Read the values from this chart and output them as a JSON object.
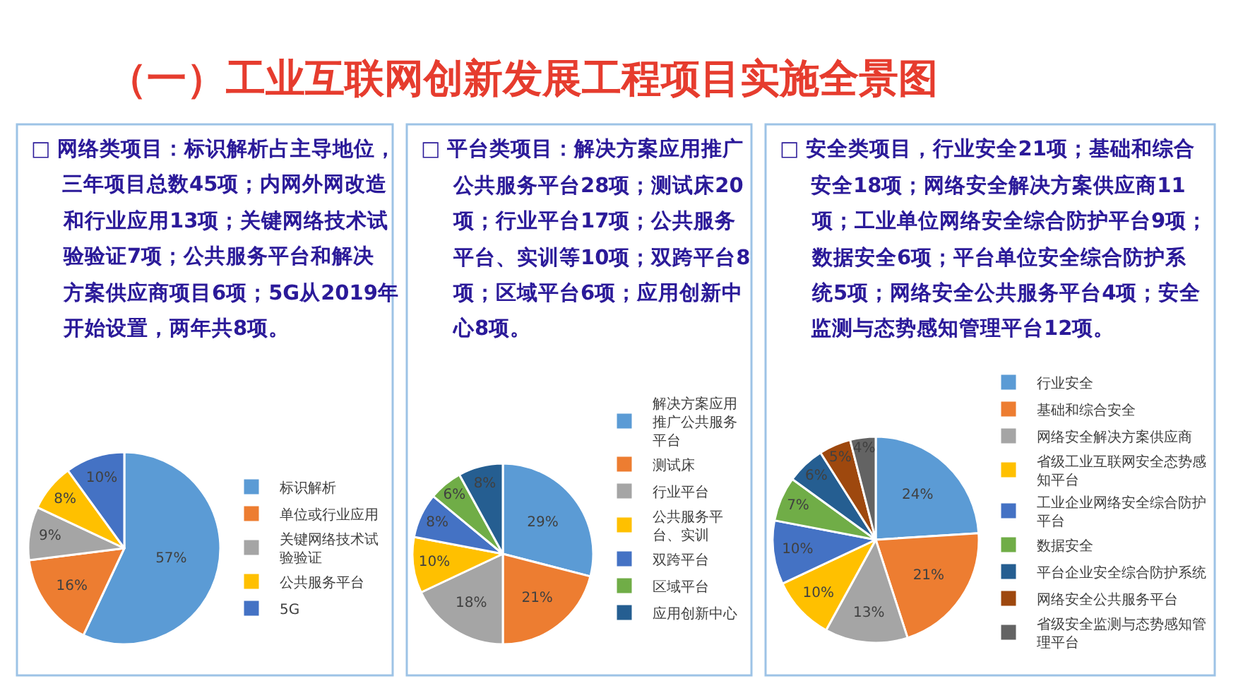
{
  "chart_data": [
    {
      "type": "pie",
      "title": "（一）工业互联网创新发展工程项目实施全景图",
      "subtitle": "□ 网络类项目：标识解析占主导地位，三年项目总数45项；内网外网改造和行业应用13项；关键网络技术试验验证7项；公共服务平台和解决方案供应商项目6项；5G从2019年开始设置，两年共8项。",
      "categories": [
        "标识解析",
        "单位或行业应用",
        "关键网络技术试验验证",
        "公共服务平台",
        "5G"
      ],
      "values": [
        57,
        16,
        9,
        8,
        10
      ],
      "colors": [
        "#5b9bd5",
        "#ed7d31",
        "#a5a5a5",
        "#ffc000",
        "#4472c4"
      ],
      "value_labels": [
        "57%",
        "16%",
        "9%",
        "8%",
        "10%"
      ],
      "legend": "right"
    },
    {
      "type": "pie",
      "subtitle": "□ 平台类项目：解决方案应用推广公共服务平台28项；测试床20项；行业平台17项；公共服务平台、实训等10项；双跨平台8项；区域平台6项；应用创新中心8项。",
      "categories": [
        "解决方案应用推广公共服务平台",
        "测试床",
        "行业平台",
        "公共服务平台、实训",
        "双跨平台",
        "区域平台",
        "应用创新中心"
      ],
      "values": [
        29,
        21,
        18,
        10,
        8,
        6,
        8
      ],
      "colors": [
        "#5b9bd5",
        "#ed7d31",
        "#a5a5a5",
        "#ffc000",
        "#4472c4",
        "#70ad47",
        "#255e91"
      ],
      "value_labels": [
        "29%",
        "21%",
        "18%",
        "10%",
        "8%",
        "6%",
        "8%"
      ],
      "legend": "right"
    },
    {
      "type": "pie",
      "subtitle": "□ 安全类项目，行业安全21项；基础和综合安全18项；网络安全解决方案供应商11项；工业单位网络安全综合防护平台9项；数据安全6项；平台单位安全综合防护系统5项；网络安全公共服务平台4项；安全监测与态势感知管理平台12项。",
      "categories": [
        "行业安全",
        "基础和综合安全",
        "网络安全解决方案供应商",
        "省级工业互联网安全态势感知平台",
        "工业企业网络安全综合防护平台",
        "数据安全",
        "平台企业安全综合防护系统",
        "网络安全公共服务平台",
        "省级安全监测与态势感知管理平台"
      ],
      "values": [
        24,
        21,
        13,
        10,
        10,
        7,
        6,
        5,
        4
      ],
      "colors": [
        "#5b9bd5",
        "#ed7d31",
        "#a5a5a5",
        "#ffc000",
        "#4472c4",
        "#70ad47",
        "#255e91",
        "#9e480e",
        "#636363"
      ],
      "value_labels": [
        "24%",
        "21%",
        "13%",
        "10%",
        "10%",
        "7%",
        "6%",
        "5%",
        "4%"
      ],
      "legend": "right"
    }
  ]
}
